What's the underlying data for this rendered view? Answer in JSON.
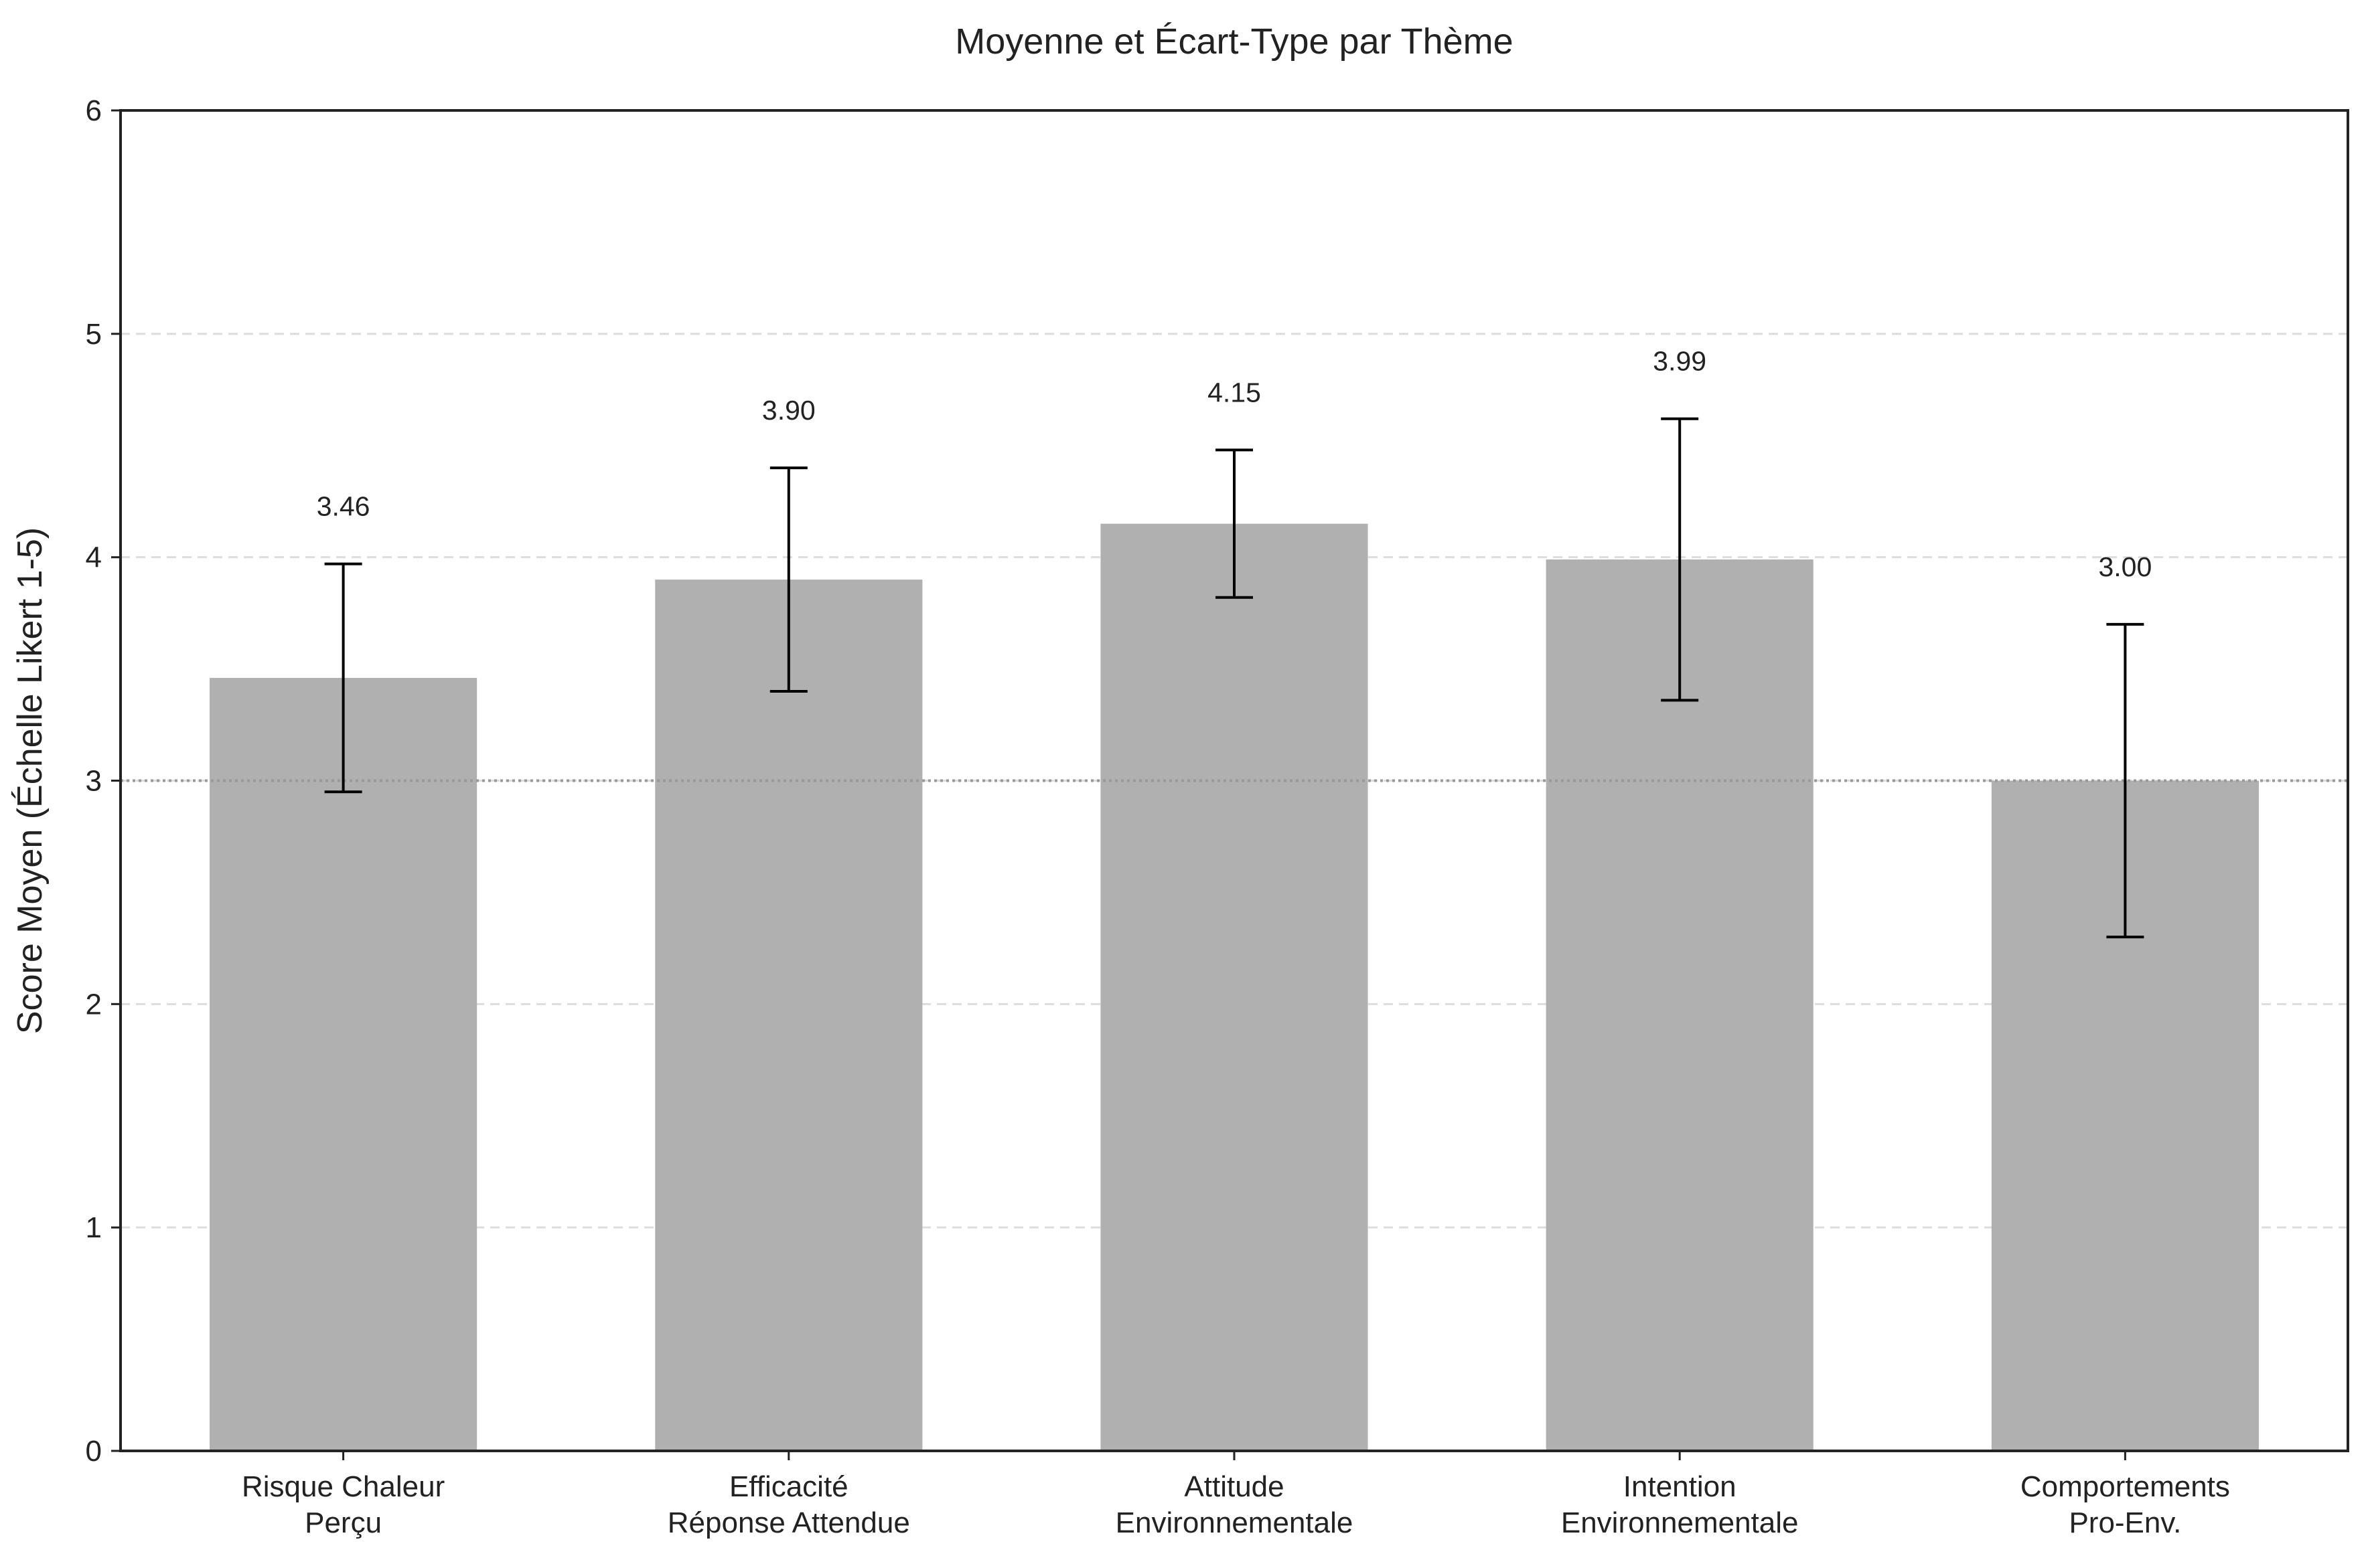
{
  "chart_data": {
    "type": "bar",
    "title": "Moyenne et Écart-Type par Thème",
    "xlabel": "",
    "ylabel": "Score Moyen (Échelle Likert 1-5)",
    "ylim": [
      0,
      6
    ],
    "yticks": [
      "0",
      "1",
      "2",
      "3",
      "4",
      "5",
      "6"
    ],
    "categories": [
      [
        "Risque Chaleur",
        "Perçu"
      ],
      [
        "Efficacité",
        "Réponse Attendue"
      ],
      [
        "Attitude",
        "Environnementale"
      ],
      [
        "Intention",
        "Environnementale"
      ],
      [
        "Comportements",
        "Pro-Env."
      ]
    ],
    "values": [
      3.46,
      3.9,
      4.15,
      3.99,
      3.0
    ],
    "value_labels": [
      "3.46",
      "3.90",
      "4.15",
      "3.99",
      "3.00"
    ],
    "error": [
      0.51,
      0.5,
      0.33,
      0.63,
      0.7
    ],
    "reference_line": 3,
    "grid": "horizontal dashed",
    "colors": {
      "bar": "#b0b0b0",
      "error_bar": "#000000",
      "grid": "#dddddd",
      "reference_line": "#999999",
      "axes": "#222222"
    }
  }
}
